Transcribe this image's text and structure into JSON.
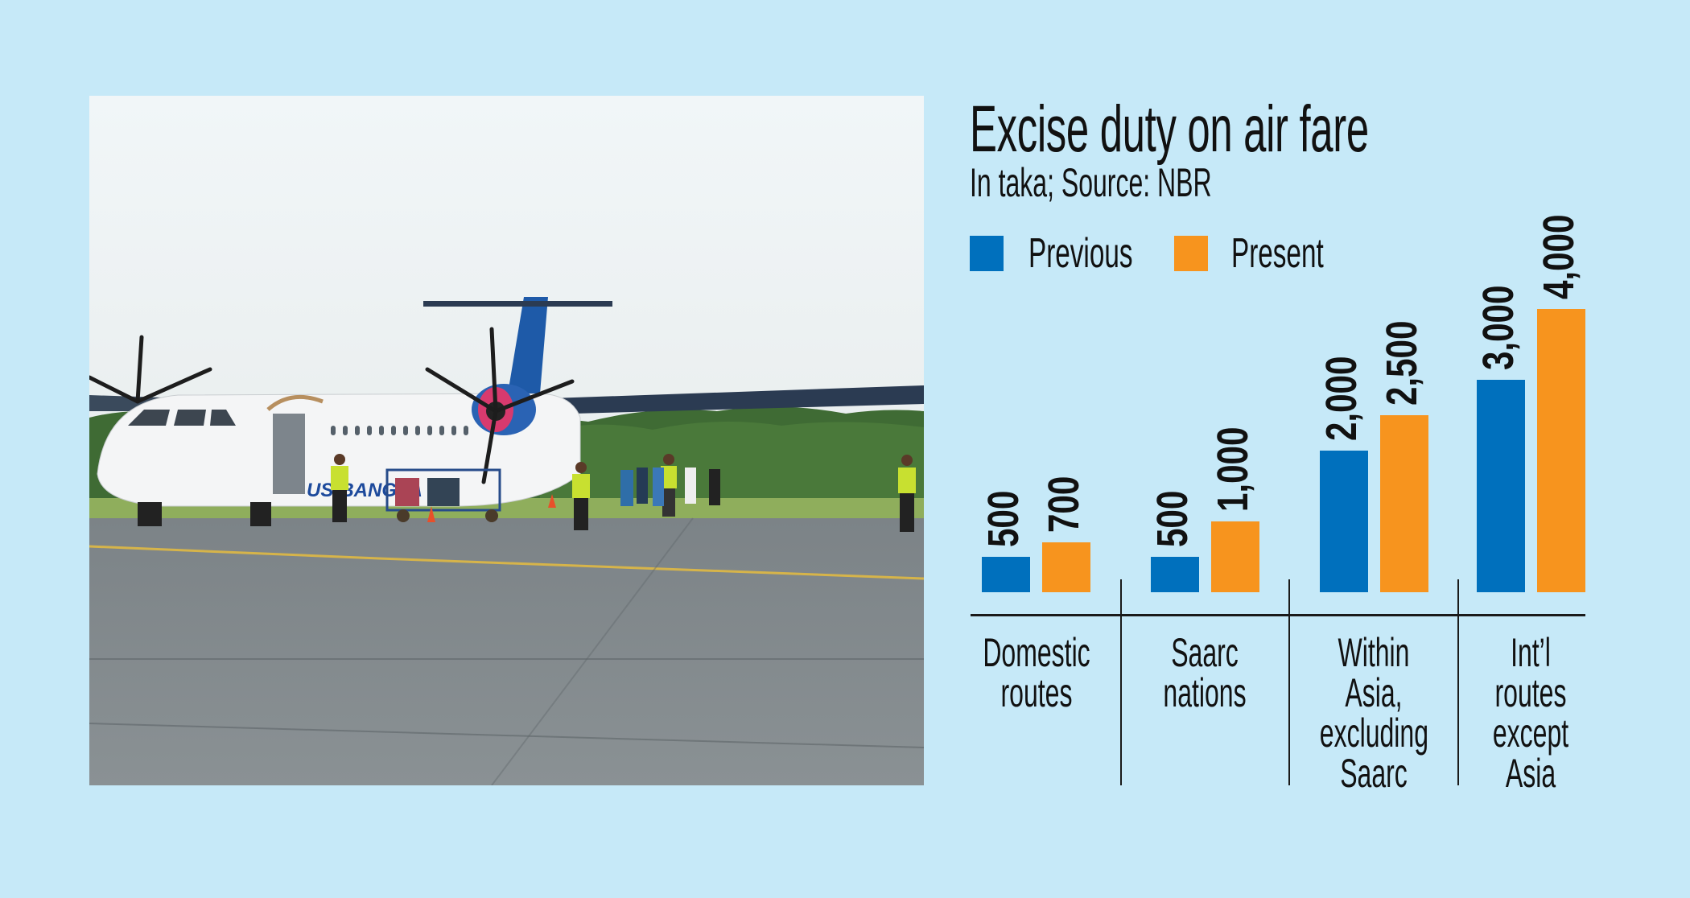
{
  "photo": {
    "alt": "US-Bangla turboprop aircraft boarding passengers on airport apron",
    "livery_text": "US-BANGLA"
  },
  "colors": {
    "background": "#c6e9f8",
    "previous": "#0070bd",
    "present": "#f7941e",
    "text": "#111111"
  },
  "chart_data": {
    "type": "bar",
    "title": "Excise duty on air fare",
    "subtitle": "In taka; Source: NBR",
    "xlabel": "",
    "ylabel": "Taka",
    "categories": [
      "Domestic routes",
      "Saarc nations",
      "Within Asia, excluding Saarc",
      "Int’l routes except Asia"
    ],
    "category_lines": [
      [
        "Domestic",
        "routes"
      ],
      [
        "Saarc",
        "nations"
      ],
      [
        "Within",
        "Asia,",
        "excluding",
        "Saarc"
      ],
      [
        "Int’l",
        "routes",
        "except",
        "Asia"
      ]
    ],
    "series": [
      {
        "name": "Previous",
        "color": "#0070bd",
        "values": [
          500,
          500,
          2000,
          3000
        ],
        "labels": [
          "500",
          "500",
          "2,000",
          "3,000"
        ]
      },
      {
        "name": "Present",
        "color": "#f7941e",
        "values": [
          700,
          1000,
          2500,
          4000
        ],
        "labels": [
          "700",
          "1,000",
          "2,500",
          "4,000"
        ]
      }
    ],
    "legend": {
      "position": "top-left",
      "entries": [
        "Previous",
        "Present"
      ]
    },
    "grid": false,
    "ylim": [
      0,
      4000
    ],
    "value_labels": "rotated-vertical-above-bars"
  }
}
